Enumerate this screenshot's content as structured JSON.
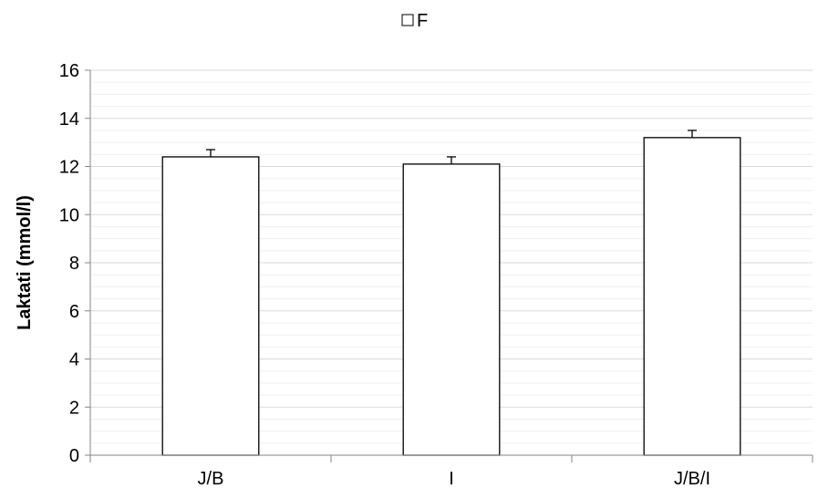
{
  "chart_data": {
    "type": "bar",
    "title": "",
    "xlabel": "",
    "ylabel": "Laktati (mmol/l)",
    "categories": [
      "J/B",
      "I",
      "J/B/I"
    ],
    "series": [
      {
        "name": "F",
        "values": [
          12.4,
          12.1,
          13.2
        ],
        "error": [
          0.3,
          0.3,
          0.3
        ],
        "color": "#ffffff",
        "stroke": "#000000"
      }
    ],
    "ylim": [
      0,
      16
    ],
    "yticks": [
      0,
      2,
      4,
      6,
      8,
      10,
      12,
      14,
      16
    ],
    "ytick_labels": [
      "0",
      "2",
      "4",
      "6",
      "8",
      "10",
      "12",
      "14",
      "16"
    ],
    "grid": true,
    "minor_grid": true,
    "legend": "top-center",
    "colors": {
      "grid_major": "#d9d9d9",
      "grid_minor": "#efefef",
      "axis": "#868686"
    }
  }
}
